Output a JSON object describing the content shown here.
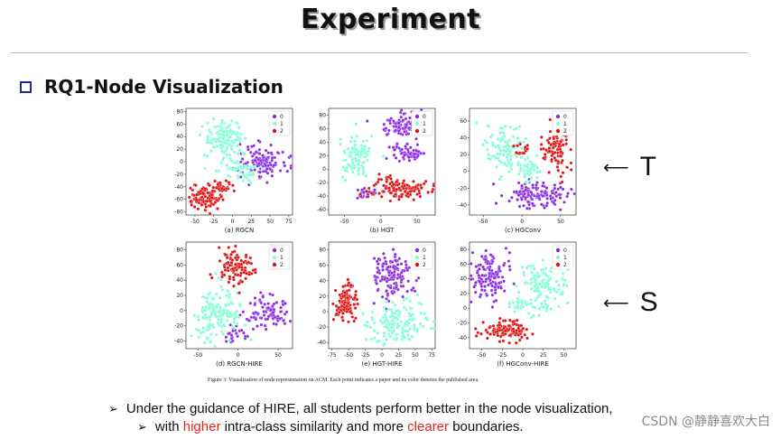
{
  "slide": {
    "title": "Experiment",
    "section_heading": "RQ1-Node Visualization"
  },
  "side_labels": {
    "top": {
      "arrow": "⟵",
      "text": "T"
    },
    "bottom": {
      "arrow": "⟵",
      "text": "S"
    }
  },
  "figure": {
    "caption": "Figure 3: Visualization of node representation on ACM. Each point indicates a paper and its color denotes the published area.",
    "legend_labels": [
      "0",
      "1",
      "2"
    ],
    "class_colors": {
      "0": "#8a2be2",
      "1": "#7fffd4",
      "2": "#e01010"
    }
  },
  "chart_data": [
    {
      "type": "scatter",
      "title": "(a) RGCN",
      "xticks": [
        "-50",
        "-25",
        "0",
        "25",
        "50",
        "75"
      ],
      "yticks": [
        "80",
        "60",
        "40",
        "20",
        "0",
        "-20",
        "-40",
        "-60",
        "-80"
      ],
      "xlim": [
        -62,
        80
      ],
      "ylim": [
        -85,
        85
      ],
      "clusters": [
        {
          "label": "0",
          "cx": 40,
          "cy": 2,
          "rx": 30,
          "ry": 28,
          "n": 120
        },
        {
          "label": "1",
          "cx": -10,
          "cy": 35,
          "rx": 28,
          "ry": 32,
          "n": 130
        },
        {
          "label": "1",
          "cx": 10,
          "cy": -15,
          "rx": 22,
          "ry": 18,
          "n": 50
        },
        {
          "label": "2",
          "cx": -38,
          "cy": -58,
          "rx": 22,
          "ry": 18,
          "n": 95
        },
        {
          "label": "2",
          "cx": -15,
          "cy": -38,
          "rx": 14,
          "ry": 10,
          "n": 30
        }
      ]
    },
    {
      "type": "scatter",
      "title": "(b) HGT",
      "xticks": [
        "-50",
        "0",
        "50"
      ],
      "yticks": [
        "80",
        "60",
        "40",
        "20",
        "0",
        "-20",
        "-40",
        "-60"
      ],
      "xlim": [
        -72,
        75
      ],
      "ylim": [
        -68,
        90
      ],
      "clusters": [
        {
          "label": "0",
          "cx": 30,
          "cy": 65,
          "rx": 28,
          "ry": 18,
          "n": 95
        },
        {
          "label": "0",
          "cx": 35,
          "cy": 25,
          "rx": 22,
          "ry": 12,
          "n": 55
        },
        {
          "label": "0",
          "cx": -20,
          "cy": -35,
          "rx": 12,
          "ry": 8,
          "n": 25
        },
        {
          "label": "1",
          "cx": -35,
          "cy": 20,
          "rx": 24,
          "ry": 32,
          "n": 95
        },
        {
          "label": "2",
          "cx": 25,
          "cy": -30,
          "rx": 40,
          "ry": 18,
          "n": 110
        }
      ]
    },
    {
      "type": "scatter",
      "title": "(c) HGConv",
      "xticks": [
        "-50",
        "0",
        "50"
      ],
      "yticks": [
        "60",
        "40",
        "20",
        "0",
        "-20",
        "-40"
      ],
      "xlim": [
        -68,
        70
      ],
      "ylim": [
        -52,
        75
      ],
      "clusters": [
        {
          "label": "0",
          "cx": 20,
          "cy": -28,
          "rx": 40,
          "ry": 18,
          "n": 125
        },
        {
          "label": "1",
          "cx": -20,
          "cy": 28,
          "rx": 28,
          "ry": 26,
          "n": 110
        },
        {
          "label": "1",
          "cx": 10,
          "cy": 0,
          "rx": 20,
          "ry": 12,
          "n": 40
        },
        {
          "label": "2",
          "cx": 45,
          "cy": 28,
          "rx": 18,
          "ry": 28,
          "n": 95
        },
        {
          "label": "2",
          "cx": 0,
          "cy": 25,
          "rx": 10,
          "ry": 8,
          "n": 15
        }
      ]
    },
    {
      "type": "scatter",
      "title": "(d) RGCN-HIRE",
      "xticks": [
        "-50",
        "0",
        "50"
      ],
      "yticks": [
        "80",
        "60",
        "40",
        "20",
        "0",
        "-20",
        "-40"
      ],
      "xlim": [
        -65,
        68
      ],
      "ylim": [
        -50,
        90
      ],
      "clusters": [
        {
          "label": "0",
          "cx": 35,
          "cy": 0,
          "rx": 28,
          "ry": 20,
          "n": 90
        },
        {
          "label": "0",
          "cx": -5,
          "cy": -30,
          "rx": 18,
          "ry": 10,
          "n": 25
        },
        {
          "label": "1",
          "cx": -25,
          "cy": -5,
          "rx": 32,
          "ry": 32,
          "n": 150
        },
        {
          "label": "2",
          "cx": -5,
          "cy": 58,
          "rx": 20,
          "ry": 22,
          "n": 105
        }
      ]
    },
    {
      "type": "scatter",
      "title": "(e) HGT-HIRE",
      "xticks": [
        "-75",
        "-50",
        "-25",
        "0",
        "25",
        "50",
        "75"
      ],
      "yticks": [
        "80",
        "60",
        "40",
        "20",
        "0",
        "-20",
        "-40"
      ],
      "xlim": [
        -80,
        80
      ],
      "ylim": [
        -48,
        90
      ],
      "clusters": [
        {
          "label": "0",
          "cx": 15,
          "cy": 45,
          "rx": 30,
          "ry": 30,
          "n": 130
        },
        {
          "label": "1",
          "cx": 25,
          "cy": -15,
          "rx": 45,
          "ry": 22,
          "n": 140
        },
        {
          "label": "2",
          "cx": -55,
          "cy": 10,
          "rx": 18,
          "ry": 22,
          "n": 110
        }
      ]
    },
    {
      "type": "scatter",
      "title": "(f) HGConv-HIRE",
      "xticks": [
        "-50",
        "-25",
        "0",
        "25",
        "50"
      ],
      "yticks": [
        "80",
        "60",
        "40",
        "20",
        "0",
        "-20",
        "-40"
      ],
      "xlim": [
        -65,
        65
      ],
      "ylim": [
        -55,
        90
      ],
      "clusters": [
        {
          "label": "0",
          "cx": -40,
          "cy": 45,
          "rx": 24,
          "ry": 30,
          "n": 130
        },
        {
          "label": "1",
          "cx": 25,
          "cy": 30,
          "rx": 28,
          "ry": 32,
          "n": 120
        },
        {
          "label": "1",
          "cx": -5,
          "cy": 5,
          "rx": 15,
          "ry": 10,
          "n": 30
        },
        {
          "label": "2",
          "cx": -20,
          "cy": -30,
          "rx": 30,
          "ry": 14,
          "n": 115
        }
      ]
    }
  ],
  "bullets": [
    {
      "mark": "➢",
      "parts": [
        {
          "text": "Under the guidance of HIRE, all students perform better in the node visualization,",
          "color": "#111111"
        }
      ]
    },
    {
      "mark": "➢",
      "parts": [
        {
          "text": "with ",
          "color": "#111111"
        },
        {
          "text": "higher",
          "color": "#e8231c"
        },
        {
          "text": " intra-class similarity and more ",
          "color": "#111111"
        },
        {
          "text": "clearer",
          "color": "#e8231c"
        },
        {
          "text": " boundaries.",
          "color": "#111111"
        }
      ]
    }
  ],
  "watermark": "CSDN @静静喜欢大白"
}
